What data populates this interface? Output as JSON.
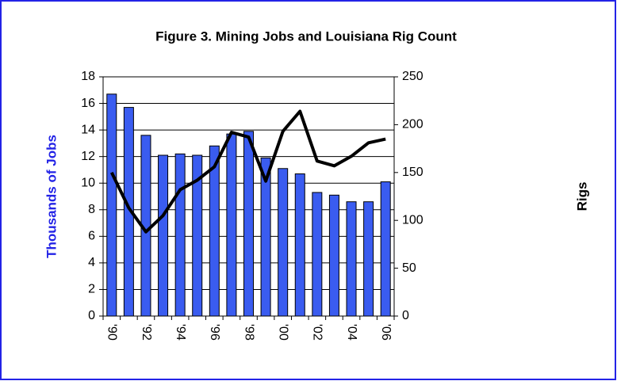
{
  "chart_data": {
    "type": "bar-line",
    "title": "Figure 3. Mining Jobs and Louisiana Rig Count",
    "ylabel": "Thousands of Jobs",
    "ylabel_color": "#2323e6",
    "y2label": "Rigs",
    "categories": [
      "'90",
      null,
      "'92",
      null,
      "'94",
      null,
      "'96",
      null,
      "'98",
      null,
      "'00",
      null,
      "'02",
      null,
      "'04",
      null,
      "'06"
    ],
    "series": [
      {
        "type": "bar",
        "color": "#3a5cf0",
        "values": [
          16.7,
          15.7,
          13.6,
          12.1,
          12.2,
          12.1,
          12.8,
          13.7,
          13.9,
          11.9,
          11.1,
          10.7,
          9.3,
          9.1,
          8.6,
          8.6,
          10.1
        ]
      },
      {
        "type": "line",
        "axis": "y2",
        "color": "#000000",
        "values": [
          150,
          113,
          88,
          105,
          132,
          142,
          156,
          192,
          187,
          141,
          193,
          214,
          162,
          157,
          167,
          181,
          185
        ]
      }
    ],
    "ylim": [
      0,
      18
    ],
    "yticks": [
      0,
      2,
      4,
      6,
      8,
      10,
      12,
      14,
      16,
      18
    ],
    "y2lim": [
      0,
      250
    ],
    "y2ticks": [
      0,
      50,
      100,
      150,
      200,
      250
    ],
    "grid": true
  }
}
